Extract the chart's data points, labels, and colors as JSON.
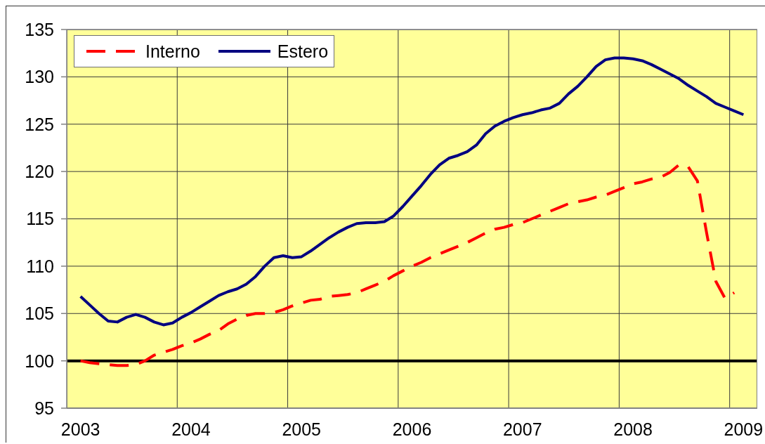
{
  "chart_data": {
    "type": "line",
    "categories": [
      null,
      "2003",
      null,
      null,
      null,
      null,
      null,
      null,
      null,
      null,
      null,
      null,
      null,
      "2004",
      null,
      null,
      null,
      null,
      null,
      null,
      null,
      null,
      null,
      null,
      null,
      "2005",
      null,
      null,
      null,
      null,
      null,
      null,
      null,
      null,
      null,
      null,
      null,
      "2006",
      null,
      null,
      null,
      null,
      null,
      null,
      null,
      null,
      null,
      null,
      null,
      "2007",
      null,
      null,
      null,
      null,
      null,
      null,
      null,
      null,
      null,
      null,
      null,
      "2008",
      null,
      null,
      null,
      null,
      null,
      null,
      null,
      null,
      null,
      null,
      null,
      "2009",
      null
    ],
    "series": [
      {
        "name": "Interno",
        "color": "#ff0000",
        "line_style": "dashed",
        "values": [
          null,
          100.0,
          99.8,
          99.7,
          99.6,
          99.5,
          99.5,
          99.6,
          100.0,
          100.6,
          100.9,
          101.2,
          101.6,
          101.9,
          102.3,
          102.8,
          103.2,
          103.9,
          104.4,
          104.8,
          105.0,
          105.0,
          105.1,
          105.4,
          105.8,
          106.1,
          106.4,
          106.5,
          106.8,
          106.9,
          107.0,
          107.2,
          107.6,
          108.0,
          108.4,
          109.0,
          109.5,
          110.0,
          110.4,
          110.9,
          111.3,
          111.7,
          112.1,
          112.5,
          113.0,
          113.5,
          113.9,
          114.1,
          114.4,
          114.6,
          115.0,
          115.4,
          115.8,
          116.2,
          116.6,
          116.8,
          117.0,
          117.3,
          117.5,
          117.9,
          118.3,
          118.7,
          118.9,
          119.2,
          119.4,
          119.9,
          120.7,
          120.5,
          119.0,
          113.5,
          108.4,
          106.6,
          107.2,
          null,
          null
        ]
      },
      {
        "name": "Estero",
        "color": "#000080",
        "line_style": "solid",
        "values": [
          null,
          106.8,
          105.9,
          105.0,
          104.2,
          104.1,
          104.6,
          104.9,
          104.6,
          104.1,
          103.8,
          104.0,
          104.6,
          105.1,
          105.7,
          106.3,
          106.9,
          107.3,
          107.6,
          108.1,
          108.9,
          110.0,
          110.9,
          111.1,
          110.9,
          111.0,
          111.6,
          112.3,
          113.0,
          113.6,
          114.1,
          114.5,
          114.6,
          114.6,
          114.7,
          115.3,
          116.3,
          117.4,
          118.5,
          119.7,
          120.7,
          121.4,
          121.7,
          122.1,
          122.8,
          124.0,
          124.8,
          125.3,
          125.7,
          126.0,
          126.2,
          126.5,
          126.7,
          127.2,
          128.2,
          129.0,
          130.0,
          131.1,
          131.8,
          132.0,
          132.0,
          131.9,
          131.7,
          131.3,
          130.8,
          130.3,
          129.8,
          129.1,
          128.5,
          127.9,
          127.2,
          126.8,
          126.4,
          126.0,
          null
        ]
      }
    ],
    "ylim": [
      95,
      135
    ],
    "yticks": [
      95,
      100,
      105,
      110,
      115,
      120,
      125,
      130,
      135
    ],
    "grid": true,
    "legend": "top left",
    "ref_lines": [
      {
        "axis": "y",
        "value": 100,
        "color": "#000000"
      }
    ]
  }
}
